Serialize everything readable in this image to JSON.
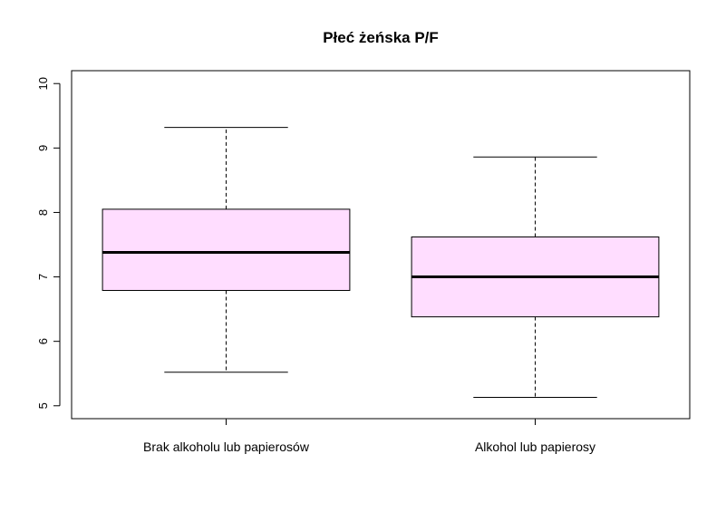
{
  "chart_data": {
    "type": "boxplot",
    "title": "Płeć żeńska P/F",
    "xlabel": "",
    "ylabel": "",
    "ylim": [
      4.8,
      10.2
    ],
    "yticks": [
      5,
      6,
      7,
      8,
      9,
      10
    ],
    "ytick_labels": [
      "5",
      "6",
      "7",
      "8",
      "9",
      "10"
    ],
    "categories": [
      "Brak alkoholu lub papierosów",
      "Alkohol lub papierosy"
    ],
    "boxes": [
      {
        "category": "Brak alkoholu lub papierosów",
        "whisker_low": 5.52,
        "q1": 6.79,
        "median": 7.38,
        "q3": 8.05,
        "whisker_high": 9.32
      },
      {
        "category": "Alkohol lub papierosy",
        "whisker_low": 5.13,
        "q1": 6.38,
        "median": 7.0,
        "q3": 7.62,
        "whisker_high": 8.86
      }
    ],
    "box_fill": "#FFDDFF",
    "stroke": "#000000",
    "grid": false,
    "legend": "none"
  }
}
